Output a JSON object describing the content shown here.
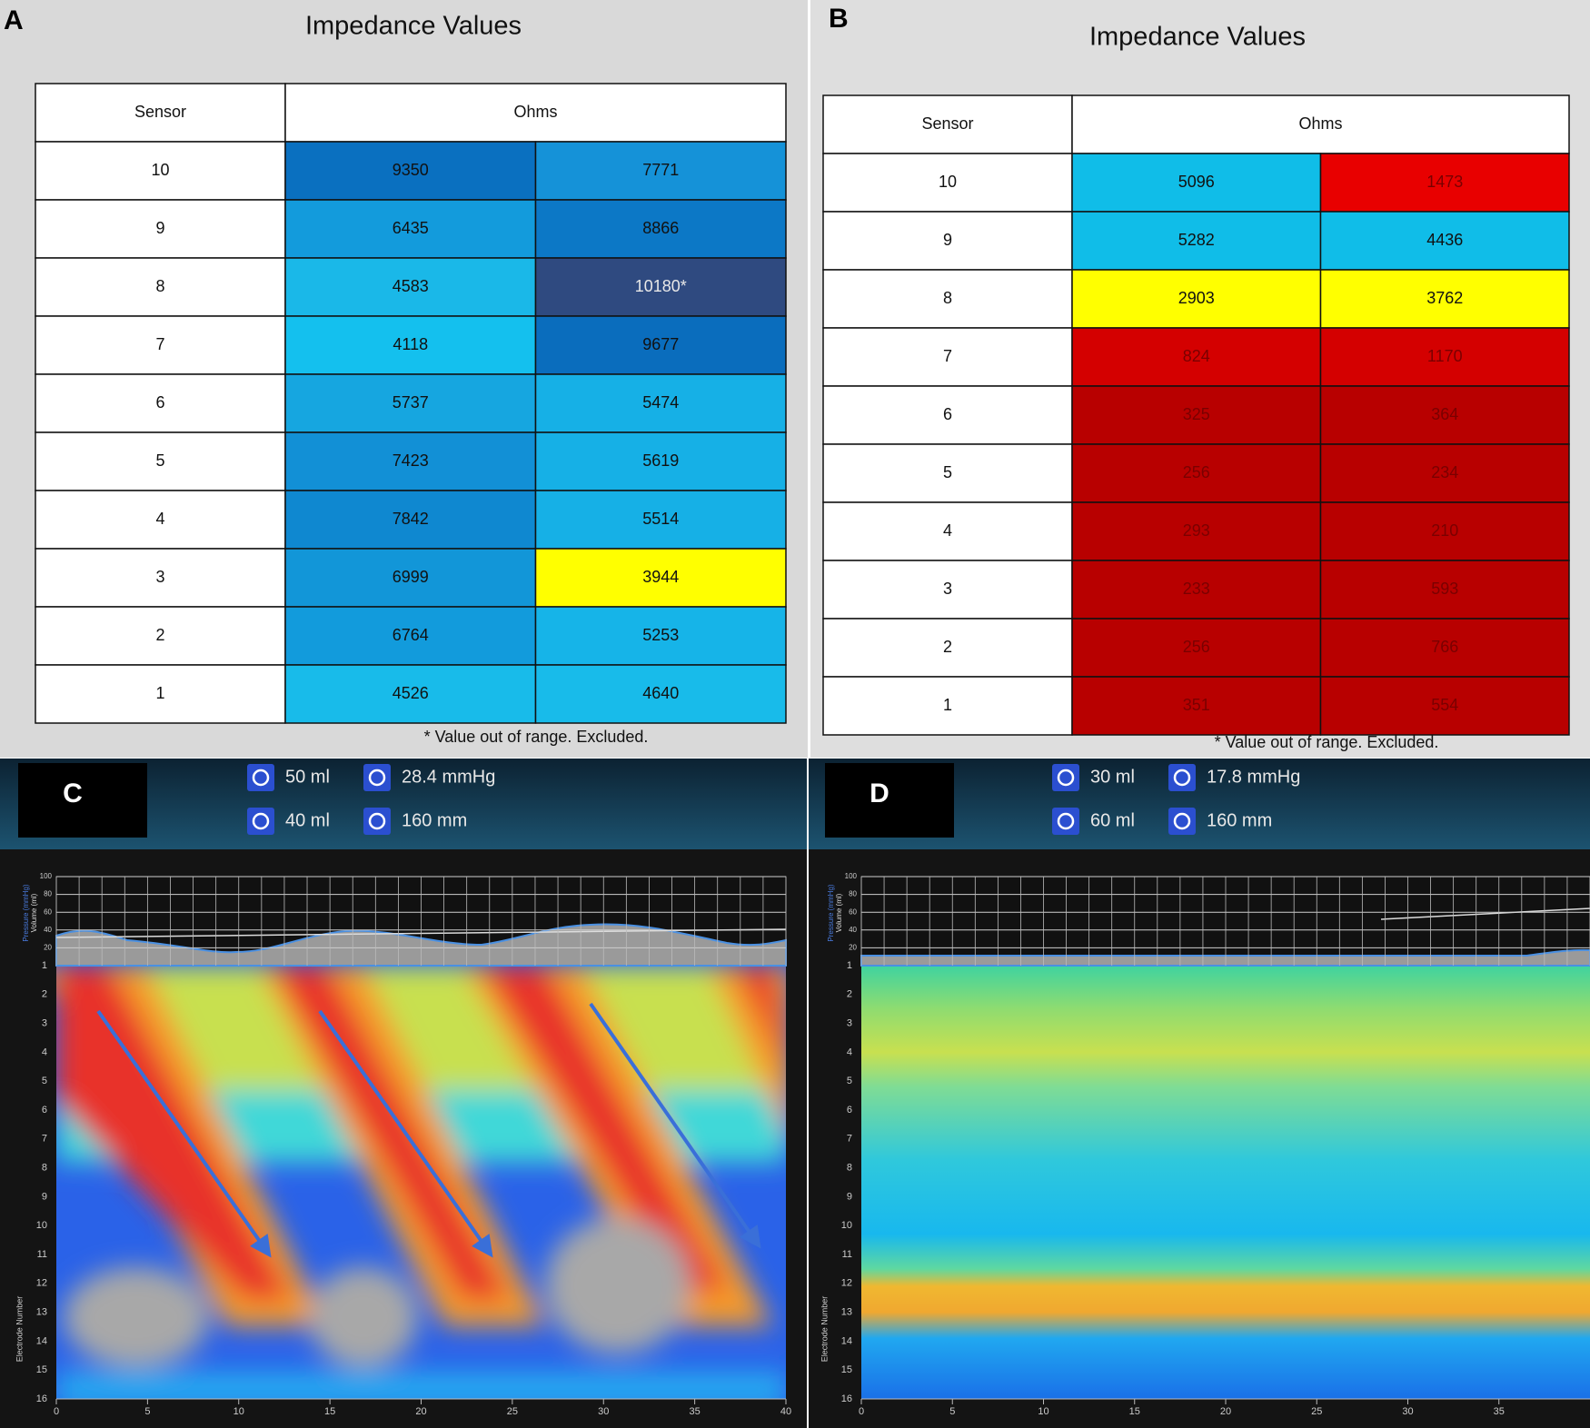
{
  "panel_a": {
    "label": "A",
    "title": "Impedance Values",
    "header": [
      "Sensor",
      "Ohms"
    ],
    "rows": [
      {
        "sensor": 10,
        "cells": [
          {
            "text": 9350,
            "color": "#0a70c0"
          },
          {
            "text": 7771,
            "color": "#1592d8"
          }
        ]
      },
      {
        "sensor": 9,
        "cells": [
          {
            "text": 6435,
            "color": "#139bdc"
          },
          {
            "text": 8866,
            "color": "#0c78c6"
          }
        ]
      },
      {
        "sensor": 8,
        "cells": [
          {
            "text": 4583,
            "color": "#1ab8e8"
          },
          {
            "text": "10180*",
            "color": "#2f4a80"
          }
        ]
      },
      {
        "sensor": 7,
        "cells": [
          {
            "text": 4118,
            "color": "#14c0ee"
          },
          {
            "text": 9677,
            "color": "#0a6dbd"
          }
        ]
      },
      {
        "sensor": 6,
        "cells": [
          {
            "text": 5737,
            "color": "#16a6e0"
          },
          {
            "text": 5474,
            "color": "#16b0e6"
          }
        ]
      },
      {
        "sensor": 5,
        "cells": [
          {
            "text": 7423,
            "color": "#1290d6"
          },
          {
            "text": 5619,
            "color": "#16b0e6"
          }
        ]
      },
      {
        "sensor": 4,
        "cells": [
          {
            "text": 7842,
            "color": "#0f88d0"
          },
          {
            "text": 5514,
            "color": "#16b0e6"
          }
        ]
      },
      {
        "sensor": 3,
        "cells": [
          {
            "text": 6999,
            "color": "#1296d8"
          },
          {
            "text": 3944,
            "color": "#ffff00"
          }
        ]
      },
      {
        "sensor": 2,
        "cells": [
          {
            "text": 6764,
            "color": "#129bdc"
          },
          {
            "text": 5253,
            "color": "#16b4e8"
          }
        ]
      },
      {
        "sensor": 1,
        "cells": [
          {
            "text": 4526,
            "color": "#18bbea"
          },
          {
            "text": 4640,
            "color": "#18bbea"
          }
        ]
      }
    ],
    "footnote": "* Value out of range. Excluded."
  },
  "panel_b": {
    "label": "B",
    "title": "Impedance Values",
    "header": [
      "Sensor",
      "Ohms"
    ],
    "rows": [
      {
        "sensor": 10,
        "cells": [
          {
            "text": 5096,
            "color": "#10bde8"
          },
          {
            "text": 1473,
            "color": "#e80000"
          }
        ]
      },
      {
        "sensor": 9,
        "cells": [
          {
            "text": 5282,
            "color": "#10bde8"
          },
          {
            "text": 4436,
            "color": "#10bde8"
          }
        ]
      },
      {
        "sensor": 8,
        "cells": [
          {
            "text": 2903,
            "color": "#ffff00"
          },
          {
            "text": 3762,
            "color": "#ffff00"
          }
        ]
      },
      {
        "sensor": 7,
        "cells": [
          {
            "text": 824,
            "color": "#d40000"
          },
          {
            "text": 1170,
            "color": "#d40000"
          }
        ]
      },
      {
        "sensor": 6,
        "cells": [
          {
            "text": 325,
            "color": "#b80000"
          },
          {
            "text": 364,
            "color": "#b80000"
          }
        ]
      },
      {
        "sensor": 5,
        "cells": [
          {
            "text": 256,
            "color": "#b80000"
          },
          {
            "text": 234,
            "color": "#b80000"
          }
        ]
      },
      {
        "sensor": 4,
        "cells": [
          {
            "text": 293,
            "color": "#b80000"
          },
          {
            "text": 210,
            "color": "#b80000"
          }
        ]
      },
      {
        "sensor": 3,
        "cells": [
          {
            "text": 233,
            "color": "#b80000"
          },
          {
            "text": 593,
            "color": "#b80000"
          }
        ]
      },
      {
        "sensor": 2,
        "cells": [
          {
            "text": 256,
            "color": "#b80000"
          },
          {
            "text": 766,
            "color": "#b80000"
          }
        ]
      },
      {
        "sensor": 1,
        "cells": [
          {
            "text": 351,
            "color": "#b80000"
          },
          {
            "text": 554,
            "color": "#b80000"
          }
        ]
      }
    ],
    "footnote": "* Value out of range. Excluded."
  },
  "panel_c": {
    "label": "C",
    "readings": [
      "50 ml",
      "28.4 mmHg",
      "40 ml",
      "160 mm"
    ],
    "pressure_axis_label": "Pressure (mmHg)",
    "volume_axis_label": "Volume (ml)",
    "y_axis_label": "Electrode Number",
    "pressure_ylim": [
      0,
      100
    ],
    "pressure_yticks": [
      20,
      40,
      60,
      80,
      100
    ],
    "electrodes": [
      1,
      2,
      3,
      4,
      5,
      6,
      7,
      8,
      9,
      10,
      11,
      12,
      13,
      14,
      15,
      16
    ],
    "xlim": [
      0,
      40
    ],
    "xticks": [
      0,
      5,
      10,
      15,
      20,
      25,
      30,
      35,
      40
    ]
  },
  "panel_d": {
    "label": "D",
    "readings": [
      "30 ml",
      "17.8 mmHg",
      "60 ml",
      "160 mm"
    ],
    "pressure_axis_label": "Pressure (mmHg)",
    "volume_axis_label": "Volume (ml)",
    "y_axis_label": "Electrode Number",
    "pressure_ylim": [
      0,
      100
    ],
    "pressure_yticks": [
      20,
      40,
      60,
      80,
      100
    ],
    "electrodes": [
      1,
      2,
      3,
      4,
      5,
      6,
      7,
      8,
      9,
      10,
      11,
      12,
      13,
      14,
      15,
      16
    ],
    "xlim": [
      0,
      40
    ],
    "xticks": [
      0,
      5,
      10,
      15,
      20,
      25,
      30,
      35
    ]
  }
}
